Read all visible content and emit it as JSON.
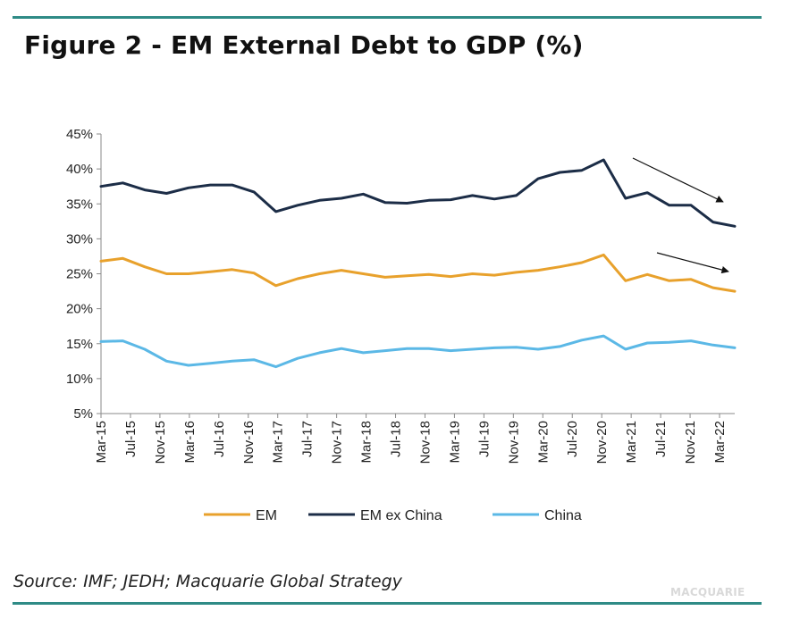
{
  "header": {
    "title": "Figure 2 - EM External Debt to GDP (%)"
  },
  "footer": {
    "source": "Source: IMF; JEDH; Macquarie Global Strategy",
    "brand": "MACQUARIE"
  },
  "colors": {
    "EM": "#e8a12c",
    "EM ex China": "#1c2d47",
    "China": "#5bb8e6",
    "rule": "#2f8b86"
  },
  "chart_data": {
    "type": "line",
    "title": "Figure 2 - EM External Debt to GDP (%)",
    "ylim": [
      5,
      45
    ],
    "yticks": [
      5,
      10,
      15,
      20,
      25,
      30,
      35,
      40,
      45
    ],
    "ytick_labels": [
      "5%",
      "10%",
      "15%",
      "20%",
      "25%",
      "30%",
      "35%",
      "40%",
      "45%"
    ],
    "x_tick_labels": [
      "Mar-15",
      "Jul-15",
      "Nov-15",
      "Mar-16",
      "Jul-16",
      "Nov-16",
      "Mar-17",
      "Jul-17",
      "Nov-17",
      "Mar-18",
      "Jul-18",
      "Nov-18",
      "Mar-19",
      "Jul-19",
      "Nov-19",
      "Mar-20",
      "Jul-20",
      "Nov-20",
      "Mar-21",
      "Jul-21",
      "Nov-21",
      "Mar-22"
    ],
    "x": [
      "Mar-15",
      "Jun-15",
      "Sep-15",
      "Dec-15",
      "Mar-16",
      "Jun-16",
      "Sep-16",
      "Dec-16",
      "Mar-17",
      "Jun-17",
      "Sep-17",
      "Dec-17",
      "Mar-18",
      "Jun-18",
      "Sep-18",
      "Dec-18",
      "Mar-19",
      "Jun-19",
      "Sep-19",
      "Dec-19",
      "Mar-20",
      "Jun-20",
      "Sep-20",
      "Dec-20",
      "Mar-21",
      "Jun-21",
      "Sep-21",
      "Dec-21",
      "Mar-22",
      "Jun-22"
    ],
    "series": [
      {
        "name": "EM",
        "values": [
          26.8,
          27.2,
          26.0,
          25.0,
          25.0,
          25.3,
          25.6,
          25.1,
          23.3,
          24.3,
          25.0,
          25.5,
          25.0,
          24.5,
          24.7,
          24.9,
          24.6,
          25.0,
          24.8,
          25.2,
          25.5,
          26.0,
          26.6,
          27.7,
          24.0,
          24.9,
          24.0,
          24.2,
          23.0,
          22.5
        ]
      },
      {
        "name": "EM ex China",
        "values": [
          37.5,
          38.0,
          37.0,
          36.5,
          37.3,
          37.7,
          37.7,
          36.7,
          33.9,
          34.8,
          35.5,
          35.8,
          36.4,
          35.2,
          35.1,
          35.5,
          35.6,
          36.2,
          35.7,
          36.2,
          38.6,
          39.5,
          39.8,
          41.3,
          35.8,
          36.6,
          34.8,
          34.8,
          32.4,
          31.8
        ]
      },
      {
        "name": "China",
        "values": [
          15.3,
          15.4,
          14.2,
          12.5,
          11.9,
          12.2,
          12.5,
          12.7,
          11.7,
          12.9,
          13.7,
          14.3,
          13.7,
          14.0,
          14.3,
          14.3,
          14.0,
          14.2,
          14.4,
          14.5,
          14.2,
          14.6,
          15.5,
          16.1,
          14.2,
          15.1,
          15.2,
          15.4,
          14.8,
          14.4
        ]
      }
    ],
    "annotations": [
      "downward arrow over EM ex China",
      "downward arrow over EM"
    ],
    "grid": false,
    "legend": "bottom-center"
  }
}
